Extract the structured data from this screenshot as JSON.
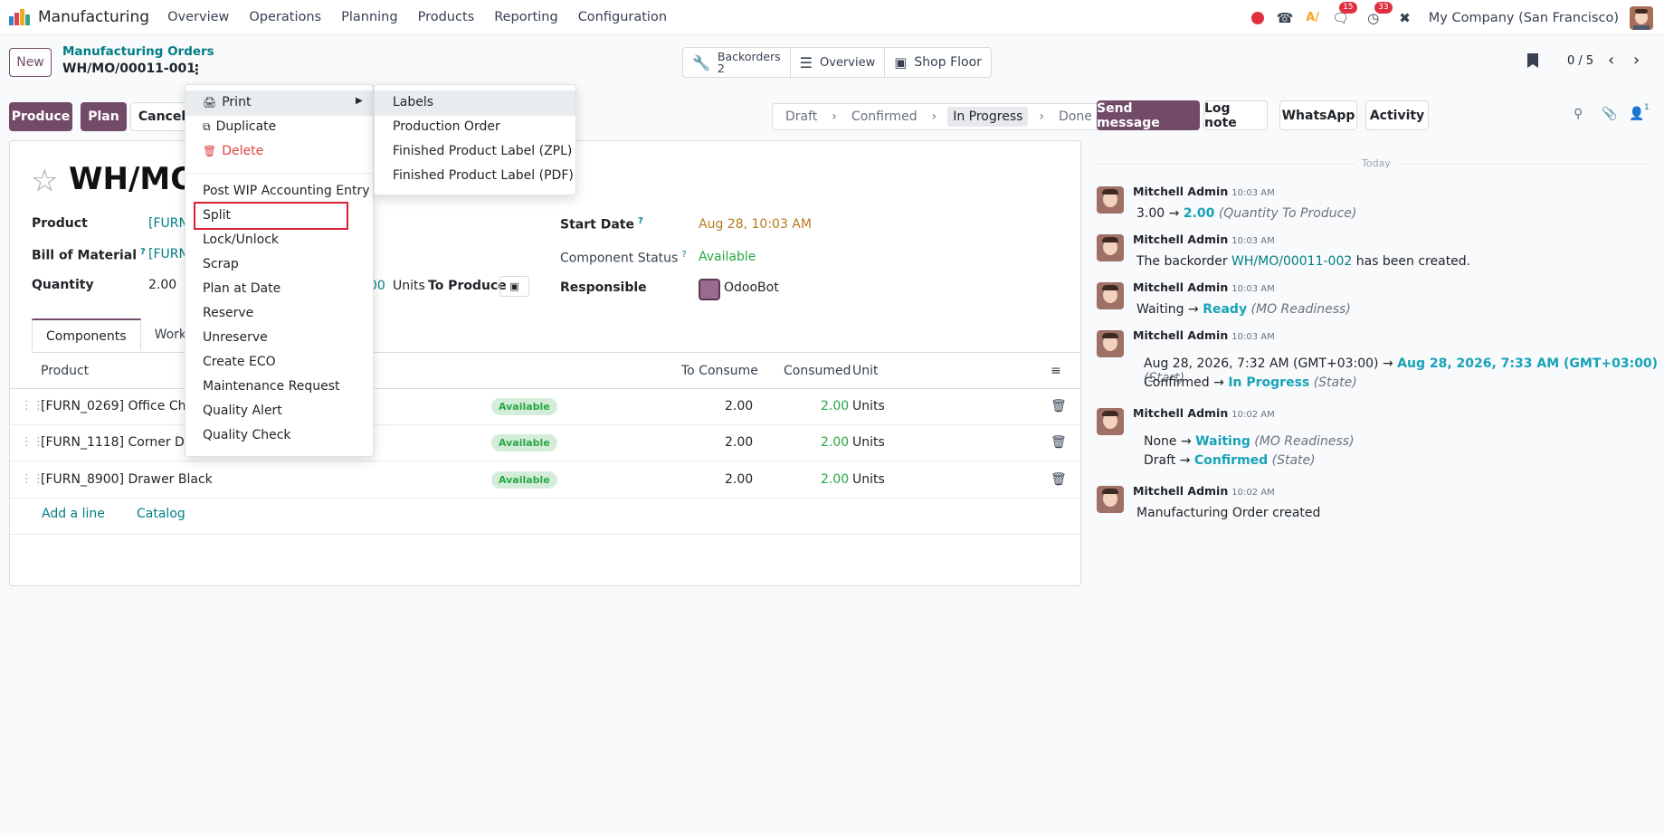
{
  "navbar": {
    "app_title": "Manufacturing",
    "menu": [
      "Overview",
      "Operations",
      "Planning",
      "Products",
      "Reporting",
      "Configuration"
    ],
    "messages_badge": "15",
    "activities_badge": "33",
    "company": "My Company (San Francisco)"
  },
  "control_panel": {
    "new_label": "New",
    "breadcrumb_parent": "Manufacturing Orders",
    "breadcrumb_current": "WH/MO/00011-001",
    "smart_buttons": {
      "backorders_label": "Backorders",
      "backorders_count": "2",
      "overview_label": "Overview",
      "shop_floor_label": "Shop Floor"
    },
    "pager": "0 / 5"
  },
  "actions": {
    "produce": "Produce",
    "plan": "Plan",
    "cancel": "Cancel"
  },
  "statusbar": [
    "Draft",
    "Confirmed",
    "In Progress",
    "Done"
  ],
  "statusbar_active": "In Progress",
  "form": {
    "title": "WH/MO/",
    "product_label": "Product",
    "product_value": "[FURN",
    "bom_label": "Bill of Material",
    "bom_value": "[FURN",
    "quantity_label": "Quantity",
    "quantity_value": "2.00",
    "quantity_partial": "00",
    "units_to_produce": "Units",
    "to_produce_label": "To Produce",
    "start_date_label": "Start Date",
    "start_date_value": "Aug 28, 10:03 AM",
    "component_status_label": "Component Status",
    "component_status_value": "Available",
    "responsible_label": "Responsible",
    "responsible_value": "OdooBot",
    "tabs": [
      "Components",
      "Work"
    ],
    "table_headers": {
      "product": "Product",
      "to_consume": "To Consume",
      "consumed": "Consumed",
      "unit": "Unit"
    },
    "rows": [
      {
        "product": "[FURN_0269] Office Chai",
        "status": "Available",
        "to_consume": "2.00",
        "consumed": "2.00",
        "unit": "Units"
      },
      {
        "product": "[FURN_1118] Corner Des",
        "status": "Available",
        "to_consume": "2.00",
        "consumed": "2.00",
        "unit": "Units"
      },
      {
        "product": "[FURN_8900] Drawer Black",
        "status": "Available",
        "to_consume": "2.00",
        "consumed": "2.00",
        "unit": "Units"
      }
    ],
    "add_line": "Add a line",
    "catalog": "Catalog"
  },
  "gear_menu": {
    "print": "Print",
    "duplicate": "Duplicate",
    "delete": "Delete",
    "items": [
      "Post WIP Accounting Entry",
      "Split",
      "Lock/Unlock",
      "Scrap",
      "Plan at Date",
      "Reserve",
      "Unreserve",
      "Create ECO",
      "Maintenance Request",
      "Quality Alert",
      "Quality Check"
    ]
  },
  "print_submenu": [
    "Labels",
    "Production Order",
    "Finished Product Label (ZPL)",
    "Finished Product Label (PDF)"
  ],
  "chatter": {
    "send_message": "Send message",
    "log_note": "Log note",
    "whatsapp": "WhatsApp",
    "activity": "Activity",
    "followers_count": "1",
    "today": "Today",
    "messages": [
      {
        "author": "Mitchell Admin",
        "time": "10:03 AM",
        "a": "3.00 →",
        "b": "2.00",
        "c": "(Quantity To Produce)"
      },
      {
        "author": "Mitchell Admin",
        "time": "10:03 AM",
        "a": "The backorder",
        "b": "WH/MO/00011-002",
        "c": "has been created."
      },
      {
        "author": "Mitchell Admin",
        "time": "10:03 AM",
        "a": "Waiting →",
        "b": "Ready",
        "c": "(MO Readiness)"
      },
      {
        "author": "Mitchell Admin",
        "time": "10:03 AM",
        "a": "Aug 28, 2026, 7:32 AM (GMT+03:00) →",
        "b": "Aug 28, 2026, 7:33 AM (GMT+03:00)",
        "c": "(Start)",
        "a2": "Confirmed →",
        "b2": "In Progress",
        "c2": "(State)"
      },
      {
        "author": "Mitchell Admin",
        "time": "10:02 AM",
        "a": "None →",
        "b": "Waiting",
        "c": "(MO Readiness)",
        "a2": "Draft →",
        "b2": "Confirmed",
        "c2": "(State)"
      },
      {
        "author": "Mitchell Admin",
        "time": "10:02 AM",
        "a": "Manufacturing Order created"
      }
    ]
  },
  "colors": {
    "brand": "#714b67",
    "teal_link": "#017e84",
    "highlight_box": "#d92036"
  }
}
